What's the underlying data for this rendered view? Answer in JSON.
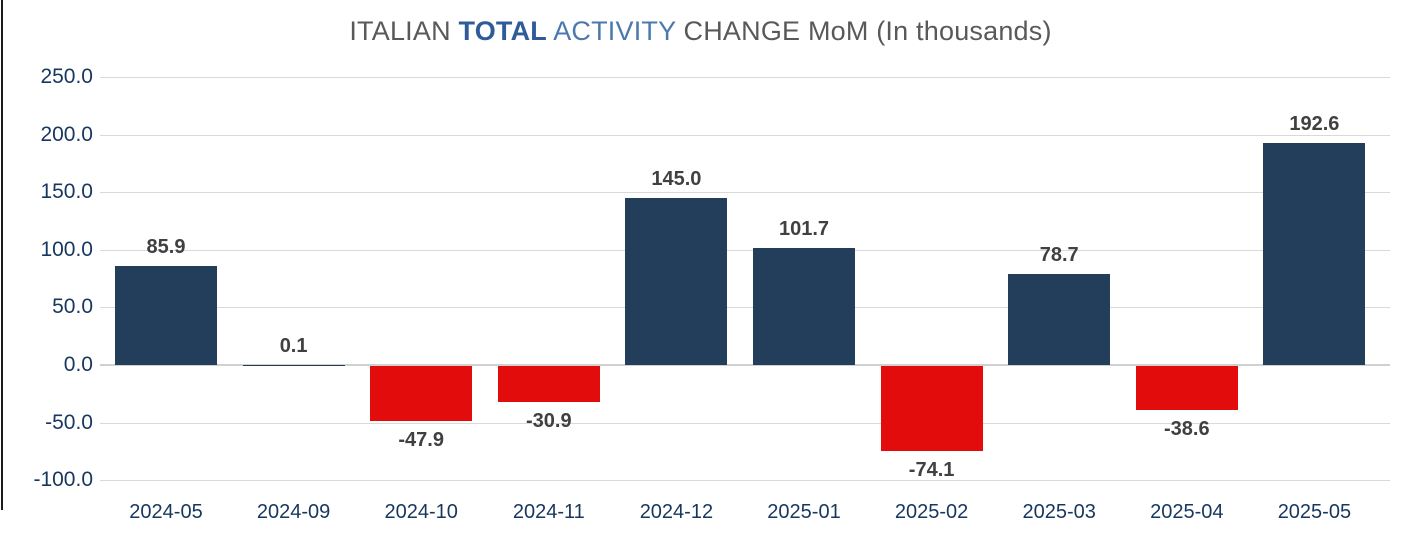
{
  "title": {
    "full_text": "ITALIAN TOTAL ACTIVITY CHANGE MoM (In thousands)",
    "parts": [
      {
        "text": "ITALIAN ",
        "color": "#595959",
        "bold": false
      },
      {
        "text": "TOTAL",
        "color": "#2F5C99",
        "bold": true
      },
      {
        "text": " ACTIVITY",
        "color": "#4B79AD",
        "bold": false
      },
      {
        "text": " CHANGE MoM (In thousands)",
        "color": "#595959",
        "bold": false
      }
    ]
  },
  "chart_data": {
    "type": "bar",
    "title": "ITALIAN TOTAL ACTIVITY CHANGE MoM (In thousands)",
    "categories": [
      "2024-05",
      "2024-09",
      "2024-10",
      "2024-11",
      "2024-12",
      "2025-01",
      "2025-02",
      "2025-03",
      "2025-04",
      "2025-05"
    ],
    "values": [
      85.9,
      0.1,
      -47.9,
      -30.9,
      145.0,
      101.7,
      -74.1,
      78.7,
      -38.6,
      192.6
    ],
    "data_labels": [
      "85.9",
      "0.1",
      "-47.9",
      "-30.9",
      "145.0",
      "101.7",
      "-74.1",
      "78.7",
      "-38.6",
      "192.6"
    ],
    "y_tick_labels": [
      "250.0",
      "200.0",
      "150.0",
      "100.0",
      "50.0",
      "0.0",
      "-50.0",
      "-100.0"
    ],
    "y_tick_values": [
      250,
      200,
      150,
      100,
      50,
      0,
      -50,
      -100
    ],
    "ylim": [
      -100,
      250
    ],
    "xlabel": "",
    "ylabel": "",
    "grid": true,
    "legend": "none"
  },
  "colors": {
    "bar_positive": "#233E5A",
    "bar_negative": "#E30C0C",
    "gridline": "#D9D9D9",
    "zero_line": "#D0D0D0",
    "axis_label": "#17375E",
    "data_label": "#404040",
    "edge_line": "#1A1A1A"
  }
}
